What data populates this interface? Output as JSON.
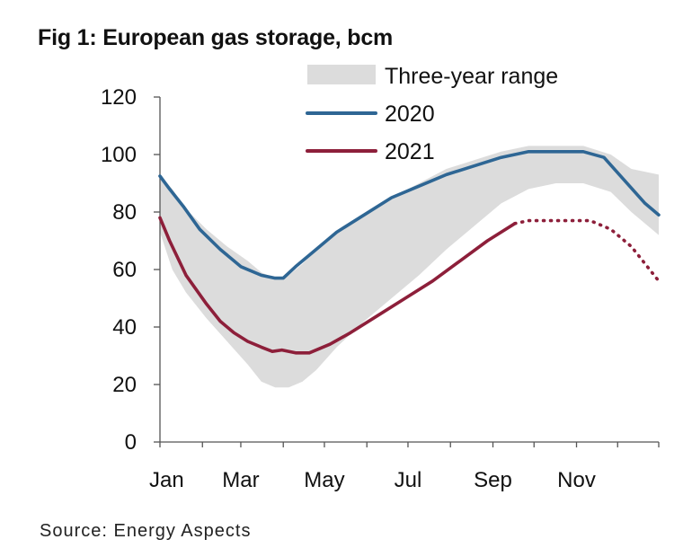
{
  "title": "Fig 1:  European gas storage, bcm",
  "source": "Source: Energy Aspects",
  "chart_data": {
    "type": "line",
    "title": "Fig 1:  European gas storage, bcm",
    "xlabel": "",
    "ylabel": "",
    "ylim": [
      0,
      120
    ],
    "xlim_days": [
      1,
      365
    ],
    "x_tick_labels": [
      "Jan",
      "Mar",
      "May",
      "Jul",
      "Sep",
      "Nov"
    ],
    "x_tick_days": [
      1,
      60,
      121,
      182,
      244,
      305
    ],
    "y_ticks": [
      0,
      20,
      40,
      60,
      80,
      100,
      120
    ],
    "grid": false,
    "legend_position": "top",
    "colors": {
      "range": "#dcdcdc",
      "s2020": "#2e6694",
      "s2021": "#8d1f3a"
    },
    "range_band": {
      "name": "Three-year range",
      "day": [
        1,
        10,
        20,
        35,
        50,
        65,
        75,
        85,
        95,
        105,
        115,
        130,
        150,
        170,
        190,
        210,
        230,
        250,
        270,
        290,
        310,
        330,
        345,
        365
      ],
      "low": [
        73,
        60,
        52,
        43,
        35,
        27,
        21,
        19,
        19,
        21,
        25,
        33,
        42,
        50,
        58,
        67,
        75,
        83,
        88,
        90,
        90,
        87,
        80,
        72
      ],
      "high": [
        93,
        88,
        81,
        74,
        68,
        63,
        59,
        57,
        58,
        62,
        67,
        73,
        79,
        85,
        90,
        95,
        98,
        101,
        103,
        103,
        103,
        100,
        95,
        93
      ]
    },
    "series": [
      {
        "name": "2020",
        "day": [
          1,
          8,
          18,
          30,
          45,
          60,
          75,
          85,
          91,
          100,
          115,
          130,
          150,
          170,
          190,
          210,
          230,
          250,
          270,
          290,
          310,
          325,
          340,
          355,
          365
        ],
        "values": [
          92.5,
          88,
          82,
          74,
          67,
          61,
          58,
          57,
          57,
          61,
          67,
          73,
          79,
          85,
          89,
          93,
          96,
          99,
          101,
          101,
          101,
          99,
          91,
          83,
          79
        ]
      },
      {
        "name": "2021",
        "day": [
          1,
          8,
          20,
          35,
          45,
          55,
          65,
          75,
          83,
          90,
          100,
          110,
          125,
          140,
          160,
          180,
          200,
          220,
          240,
          260
        ],
        "values": [
          78,
          70,
          58,
          48,
          42,
          38,
          35,
          33,
          31.5,
          32,
          31,
          31,
          34,
          38,
          44,
          50,
          56,
          63,
          70,
          76
        ],
        "dotted_forecast": {
          "day": [
            260,
            270,
            285,
            300,
            315,
            330,
            345,
            355,
            365
          ],
          "values": [
            76,
            77,
            77,
            77,
            77,
            74,
            68,
            62,
            56
          ]
        }
      }
    ]
  }
}
